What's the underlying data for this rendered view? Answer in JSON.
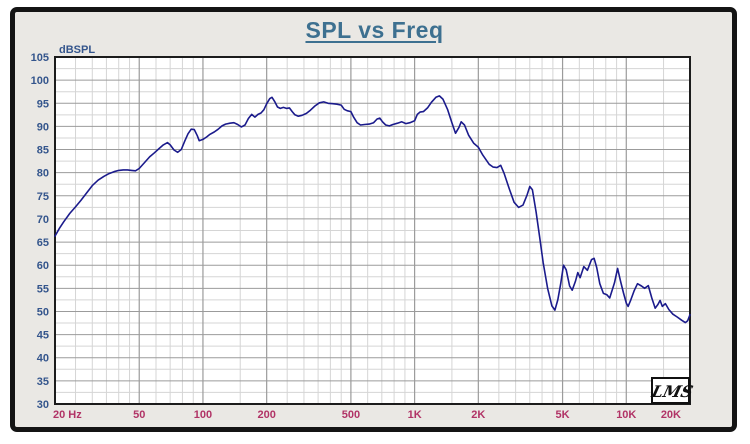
{
  "page": {
    "title": "SPL vs Freq"
  },
  "logo": {
    "text": "LMS"
  },
  "colors": {
    "frame_bg": "#eae8e4",
    "frame_border": "#141414",
    "plot_bg": "#ffffff",
    "grid_minor": "#d5d5d5",
    "grid_major": "#9b9b9b",
    "plot_border": "#1c1c1c",
    "curve": "#1b1b8c",
    "y_label": "#34558c",
    "x_label": "#b13366",
    "title": "#3d7090"
  },
  "chart_data": {
    "type": "line",
    "title": "SPL vs Freq",
    "xlabel": "Hz",
    "ylabel": "dBSPL",
    "x_scale": "log",
    "xlim": [
      20,
      20000
    ],
    "ylim": [
      30,
      105
    ],
    "y_major_step": 5,
    "y_minor_step": 2.5,
    "grid": "on",
    "y_tick_labels": [
      "105",
      "100",
      "95",
      "90",
      "85",
      "80",
      "75",
      "70",
      "65",
      "60",
      "55",
      "50",
      "45",
      "40",
      "35",
      "30"
    ],
    "x_ticks": [
      {
        "label": "20 Hz",
        "f": 20,
        "anchor": "start"
      },
      {
        "label": "50",
        "f": 50
      },
      {
        "label": "100",
        "f": 100
      },
      {
        "label": "200",
        "f": 200
      },
      {
        "label": "500",
        "f": 500
      },
      {
        "label": "1K",
        "f": 1000
      },
      {
        "label": "2K",
        "f": 2000
      },
      {
        "label": "5K",
        "f": 5000
      },
      {
        "label": "10K",
        "f": 10000
      },
      {
        "label": "20K",
        "f": 20000,
        "anchor": "end"
      }
    ],
    "x_minor_multipliers": [
      1.5,
      2.5,
      3,
      3.5,
      4,
      4.5,
      6,
      7,
      8,
      9
    ],
    "x_decades": [
      10,
      100,
      1000,
      10000
    ],
    "series": [
      {
        "name": "SPL",
        "points": [
          [
            20,
            66.3
          ],
          [
            21,
            68.0
          ],
          [
            22,
            69.4
          ],
          [
            23.5,
            71.2
          ],
          [
            25,
            72.6
          ],
          [
            26.5,
            74.0
          ],
          [
            28,
            75.4
          ],
          [
            30,
            77.2
          ],
          [
            32,
            78.4
          ],
          [
            34,
            79.2
          ],
          [
            36,
            79.8
          ],
          [
            38,
            80.2
          ],
          [
            40,
            80.5
          ],
          [
            42,
            80.6
          ],
          [
            44,
            80.6
          ],
          [
            46,
            80.5
          ],
          [
            48,
            80.4
          ],
          [
            50,
            80.9
          ],
          [
            53,
            82.2
          ],
          [
            56,
            83.4
          ],
          [
            59,
            84.3
          ],
          [
            62,
            85.2
          ],
          [
            65,
            86.0
          ],
          [
            68,
            86.5
          ],
          [
            70,
            86.0
          ],
          [
            73,
            84.9
          ],
          [
            76,
            84.4
          ],
          [
            79,
            85.0
          ],
          [
            82,
            86.8
          ],
          [
            85,
            88.4
          ],
          [
            88,
            89.4
          ],
          [
            91,
            89.3
          ],
          [
            94,
            88.0
          ],
          [
            96,
            86.9
          ],
          [
            100,
            87.2
          ],
          [
            104,
            87.7
          ],
          [
            108,
            88.3
          ],
          [
            113,
            88.8
          ],
          [
            118,
            89.4
          ],
          [
            123,
            90.1
          ],
          [
            128,
            90.5
          ],
          [
            134,
            90.7
          ],
          [
            140,
            90.8
          ],
          [
            146,
            90.4
          ],
          [
            152,
            89.9
          ],
          [
            158,
            90.3
          ],
          [
            164,
            91.7
          ],
          [
            170,
            92.6
          ],
          [
            176,
            92.0
          ],
          [
            182,
            92.6
          ],
          [
            188,
            92.9
          ],
          [
            194,
            93.6
          ],
          [
            200,
            94.9
          ],
          [
            207,
            96.0
          ],
          [
            212,
            96.3
          ],
          [
            218,
            95.4
          ],
          [
            225,
            94.2
          ],
          [
            232,
            93.9
          ],
          [
            240,
            94.1
          ],
          [
            248,
            93.9
          ],
          [
            256,
            94.0
          ],
          [
            264,
            93.2
          ],
          [
            272,
            92.5
          ],
          [
            282,
            92.2
          ],
          [
            294,
            92.4
          ],
          [
            308,
            92.8
          ],
          [
            322,
            93.5
          ],
          [
            338,
            94.4
          ],
          [
            355,
            95.1
          ],
          [
            372,
            95.3
          ],
          [
            390,
            95.0
          ],
          [
            410,
            94.9
          ],
          [
            430,
            94.8
          ],
          [
            450,
            94.6
          ],
          [
            465,
            93.7
          ],
          [
            480,
            93.4
          ],
          [
            500,
            93.2
          ],
          [
            515,
            92.0
          ],
          [
            535,
            90.8
          ],
          [
            555,
            90.3
          ],
          [
            580,
            90.4
          ],
          [
            610,
            90.5
          ],
          [
            640,
            90.8
          ],
          [
            665,
            91.6
          ],
          [
            685,
            91.8
          ],
          [
            705,
            91.0
          ],
          [
            730,
            90.3
          ],
          [
            760,
            90.1
          ],
          [
            790,
            90.4
          ],
          [
            830,
            90.7
          ],
          [
            870,
            91.0
          ],
          [
            910,
            90.6
          ],
          [
            950,
            90.8
          ],
          [
            1000,
            91.2
          ],
          [
            1030,
            92.6
          ],
          [
            1060,
            93.1
          ],
          [
            1100,
            93.2
          ],
          [
            1150,
            94.0
          ],
          [
            1200,
            95.2
          ],
          [
            1260,
            96.3
          ],
          [
            1310,
            96.6
          ],
          [
            1360,
            95.9
          ],
          [
            1430,
            93.7
          ],
          [
            1500,
            90.8
          ],
          [
            1560,
            88.5
          ],
          [
            1620,
            89.8
          ],
          [
            1660,
            91.0
          ],
          [
            1720,
            90.3
          ],
          [
            1800,
            88.1
          ],
          [
            1900,
            86.4
          ],
          [
            2000,
            85.5
          ],
          [
            2100,
            83.8
          ],
          [
            2250,
            81.8
          ],
          [
            2350,
            81.2
          ],
          [
            2450,
            81.1
          ],
          [
            2550,
            81.6
          ],
          [
            2650,
            79.8
          ],
          [
            2800,
            76.5
          ],
          [
            2950,
            73.6
          ],
          [
            3100,
            72.5
          ],
          [
            3250,
            73.0
          ],
          [
            3400,
            75.2
          ],
          [
            3500,
            77.0
          ],
          [
            3600,
            76.3
          ],
          [
            3750,
            71.5
          ],
          [
            3900,
            66.0
          ],
          [
            4050,
            60.5
          ],
          [
            4250,
            55.0
          ],
          [
            4450,
            51.2
          ],
          [
            4600,
            50.3
          ],
          [
            4750,
            52.5
          ],
          [
            4900,
            56.0
          ],
          [
            5050,
            60.0
          ],
          [
            5200,
            59.0
          ],
          [
            5400,
            55.5
          ],
          [
            5550,
            54.6
          ],
          [
            5750,
            56.5
          ],
          [
            5900,
            58.4
          ],
          [
            6050,
            57.3
          ],
          [
            6300,
            59.7
          ],
          [
            6550,
            58.9
          ],
          [
            6850,
            61.2
          ],
          [
            7050,
            61.5
          ],
          [
            7250,
            59.5
          ],
          [
            7500,
            56.0
          ],
          [
            7800,
            53.9
          ],
          [
            8100,
            53.6
          ],
          [
            8350,
            52.9
          ],
          [
            8800,
            56.2
          ],
          [
            9100,
            59.3
          ],
          [
            9400,
            56.5
          ],
          [
            9700,
            54.0
          ],
          [
            10000,
            51.8
          ],
          [
            10200,
            51.1
          ],
          [
            10500,
            52.5
          ],
          [
            10900,
            54.5
          ],
          [
            11300,
            56.0
          ],
          [
            11800,
            55.5
          ],
          [
            12200,
            55.0
          ],
          [
            12700,
            55.6
          ],
          [
            13200,
            52.9
          ],
          [
            13700,
            50.7
          ],
          [
            14100,
            51.5
          ],
          [
            14450,
            52.4
          ],
          [
            14800,
            51.1
          ],
          [
            15300,
            51.7
          ],
          [
            15900,
            50.4
          ],
          [
            16600,
            49.4
          ],
          [
            17400,
            48.8
          ],
          [
            18300,
            48.1
          ],
          [
            19000,
            47.6
          ],
          [
            19500,
            48.0
          ],
          [
            20000,
            49.3
          ]
        ]
      }
    ]
  }
}
